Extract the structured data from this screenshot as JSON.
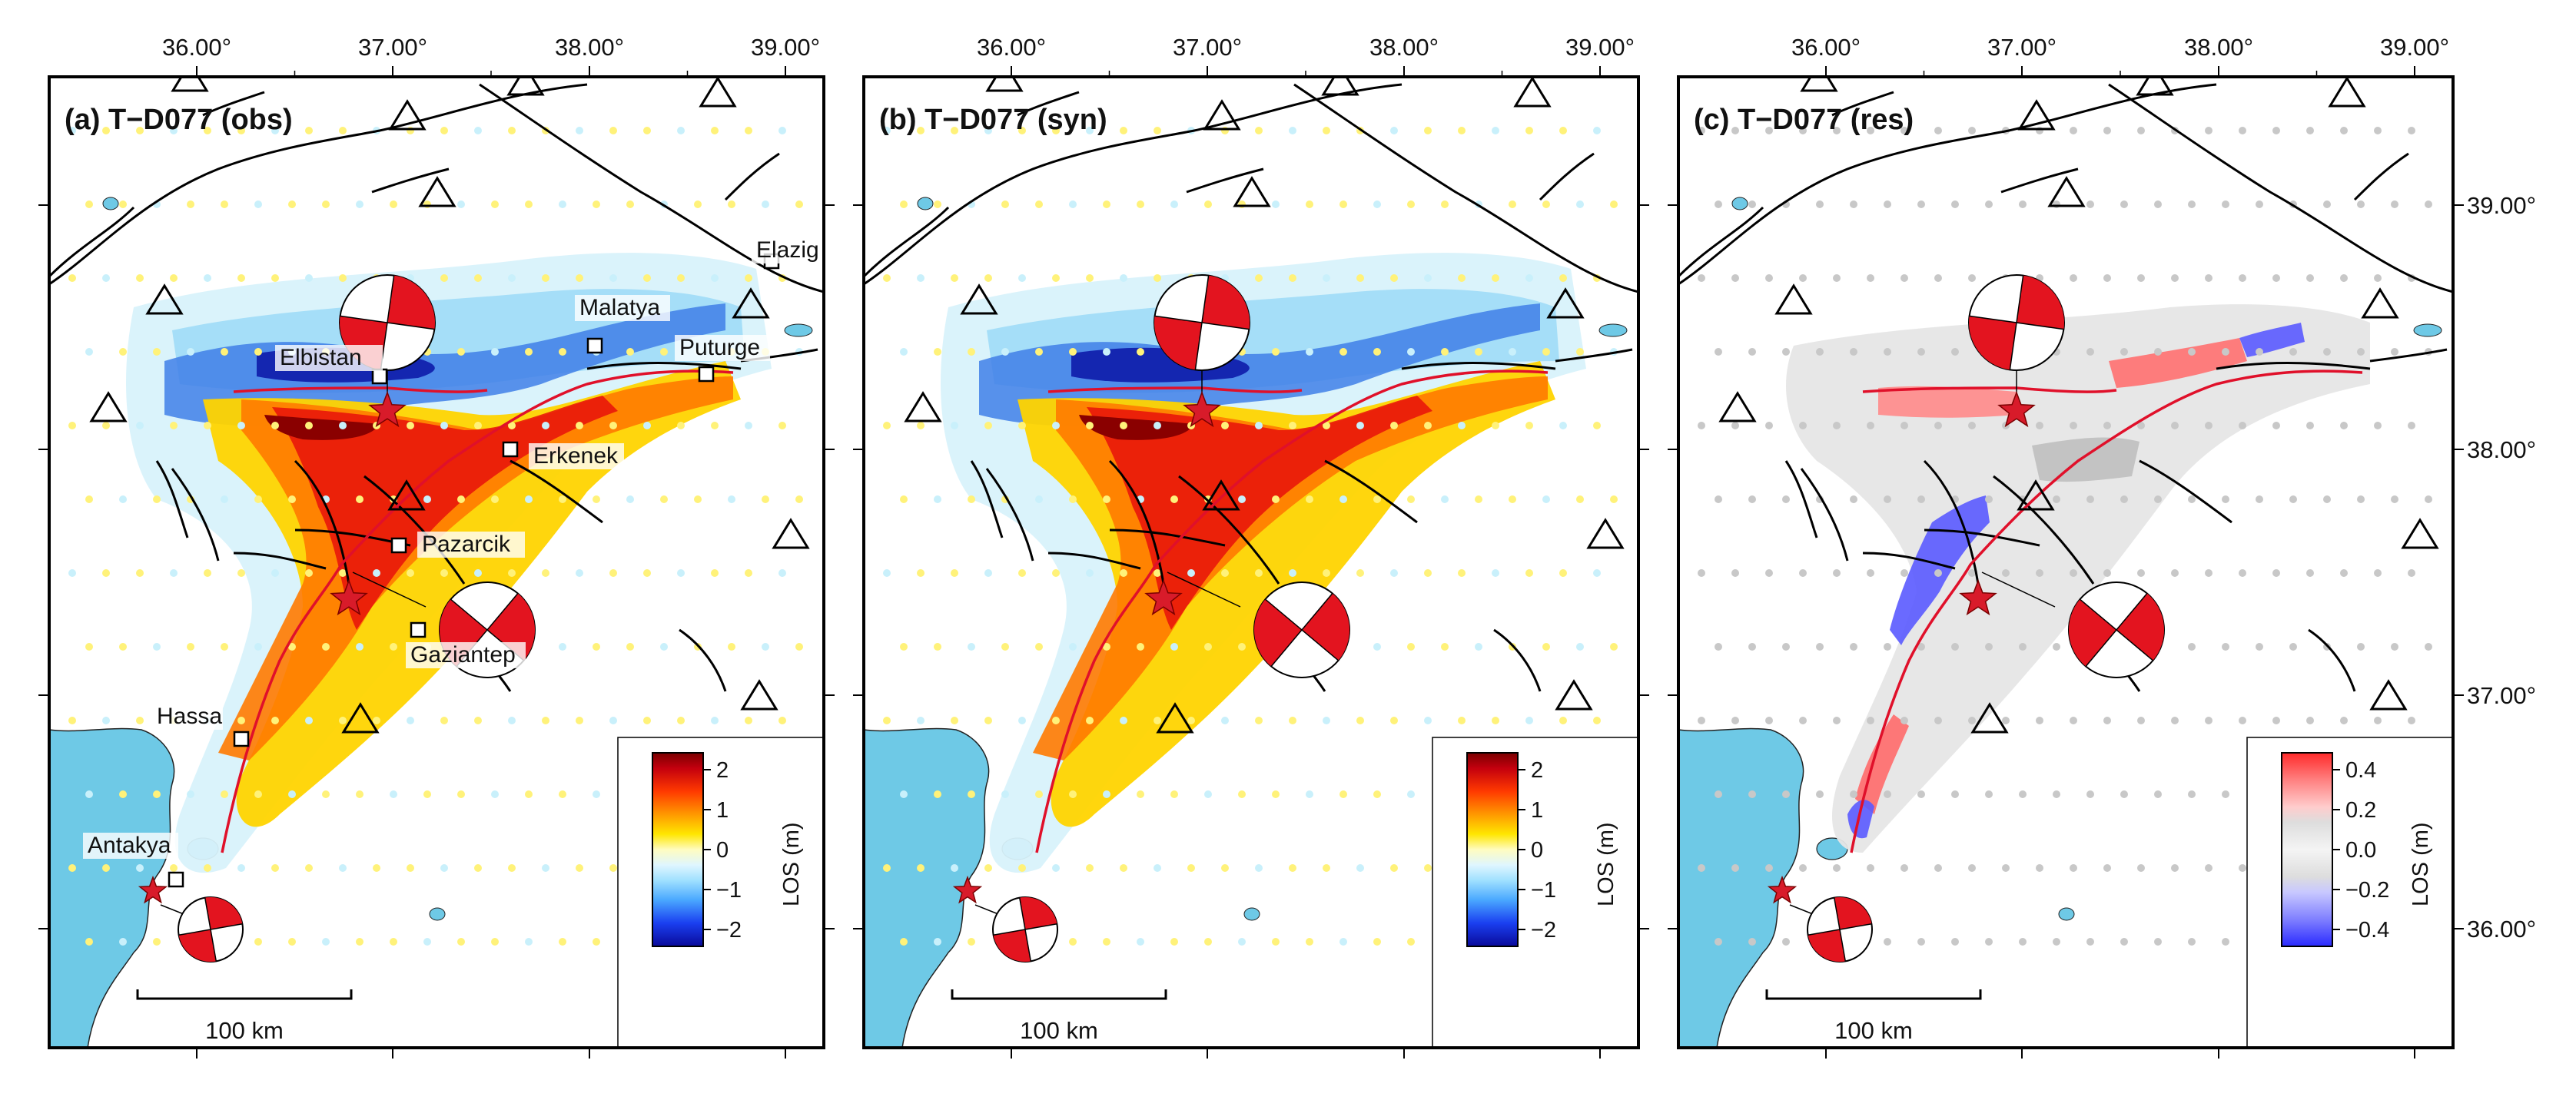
{
  "longitude_ticks": [
    "36.00°",
    "37.00°",
    "38.00°",
    "39.00°"
  ],
  "latitude_ticks": [
    "39.00°",
    "38.00°",
    "37.00°",
    "36.00°"
  ],
  "panels": [
    {
      "title": "(a) T−D077 (obs)",
      "type": "obs",
      "colorbar": {
        "label": "LOS (m)",
        "ticks": [
          "2",
          "1",
          "0",
          "−1",
          "−2"
        ]
      },
      "cities": [
        {
          "name": "Elazig"
        },
        {
          "name": "Malatya"
        },
        {
          "name": "Puturge"
        },
        {
          "name": "Elbistan"
        },
        {
          "name": "Erkenek"
        },
        {
          "name": "Pazarcik"
        },
        {
          "name": "Gaziantep"
        },
        {
          "name": "Hassa"
        },
        {
          "name": "Antakya"
        }
      ],
      "scale_bar": "100 km"
    },
    {
      "title": "(b) T−D077 (syn)",
      "type": "syn",
      "colorbar": {
        "label": "LOS (m)",
        "ticks": [
          "2",
          "1",
          "0",
          "−1",
          "−2"
        ]
      },
      "scale_bar": "100 km"
    },
    {
      "title": "(c) T−D077 (res)",
      "type": "res",
      "colorbar": {
        "label": "LOS (m)",
        "ticks": [
          "0.4",
          "0.2",
          "0.0",
          "−0.2",
          "−0.4"
        ]
      },
      "scale_bar": "100 km"
    }
  ],
  "colors": {
    "fault_red": "#e0102a",
    "water": "#6ec9e6",
    "epicenter": "#d81b2a",
    "beachball_fill": "#e3141f"
  },
  "icons": [
    "seismic-station-triangle",
    "epicenter-star",
    "focal-mechanism-beachball",
    "city-square"
  ]
}
